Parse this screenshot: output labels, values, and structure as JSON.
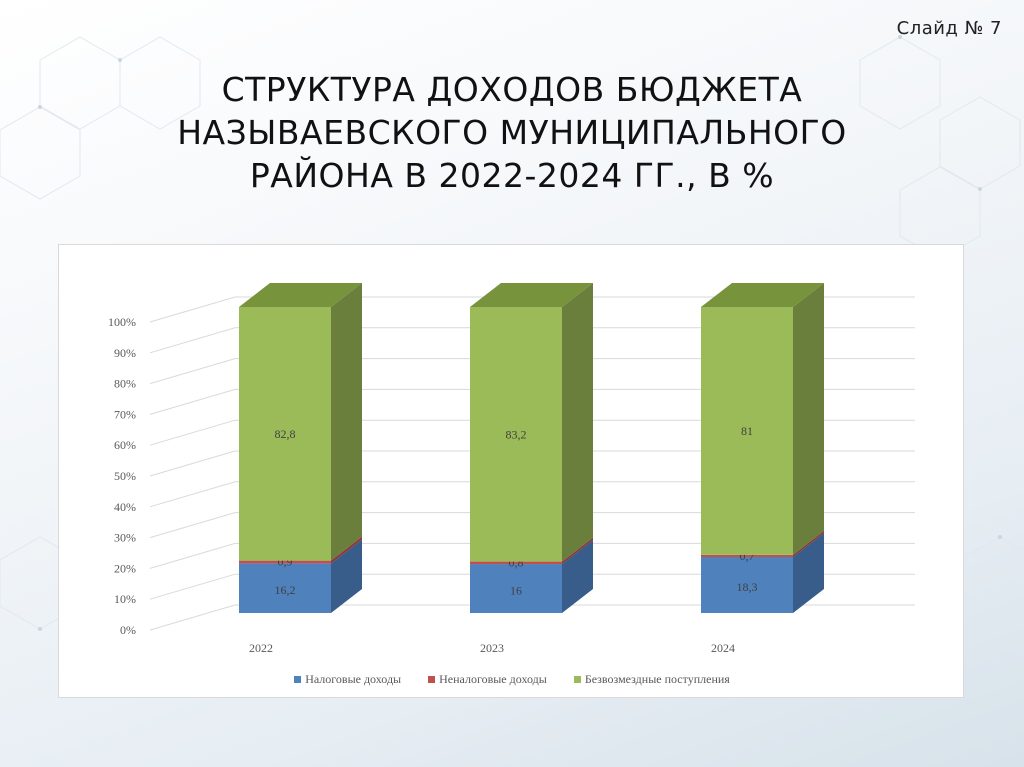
{
  "slide": {
    "number_label": "Слайд № 7",
    "title_lines": [
      "СТРУКТУРА ДОХОДОВ БЮДЖЕТА",
      "НАЗЫВАЕВСКОГО МУНИЦИПАЛЬНОГО",
      "РАЙОНА В 2022-2024 ГГ., В %"
    ]
  },
  "colors": {
    "tax": "#4f81bd",
    "tax_side": "#385d8a",
    "nontax": "#c0504d",
    "nontax_side": "#8c3836",
    "grant": "#9bbb59",
    "grant_side": "#6a7f3b",
    "grant_top": "#77933c"
  },
  "chart_data": {
    "type": "bar",
    "subtype": "stacked-100-3d",
    "title": "Структура доходов бюджета Называевского муниципального района в 2022-2024 гг., в %",
    "categories": [
      "2022",
      "2023",
      "2024"
    ],
    "series": [
      {
        "name": "Налоговые доходы",
        "values": [
          16.2,
          16,
          18.3
        ],
        "labels": [
          "16,2",
          "16",
          "18,3"
        ]
      },
      {
        "name": "Неналоговые доходы",
        "values": [
          0.9,
          0.8,
          0.7
        ],
        "labels": [
          "0,9",
          "0,8",
          "0,7"
        ]
      },
      {
        "name": "Безвозмездные поступления",
        "values": [
          82.8,
          83.2,
          81
        ],
        "labels": [
          "82,8",
          "83,2",
          "81"
        ]
      }
    ],
    "yticks": [
      "0%",
      "10%",
      "20%",
      "30%",
      "40%",
      "50%",
      "60%",
      "70%",
      "80%",
      "90%",
      "100%"
    ],
    "ylim": [
      0,
      100
    ],
    "xlabel": "",
    "ylabel": "",
    "grid": true,
    "legend_position": "bottom"
  },
  "legend": {
    "items": [
      {
        "label": "Налоговые доходы",
        "color": "#4f81bd"
      },
      {
        "label": "Неналоговые доходы",
        "color": "#c0504d"
      },
      {
        "label": "Безвозмездные поступления",
        "color": "#9bbb59"
      }
    ]
  }
}
